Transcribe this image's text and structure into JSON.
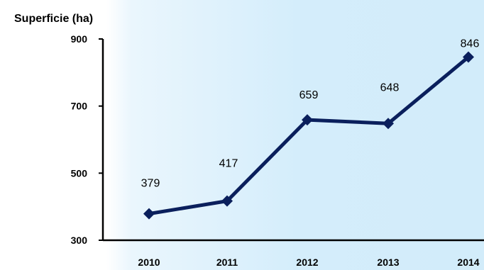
{
  "chart_data": {
    "type": "line",
    "title": "",
    "ylabel": "Superficie (ha)",
    "xlabel": "",
    "categories": [
      "2010",
      "2011",
      "2012",
      "2013",
      "2014"
    ],
    "series": [
      {
        "values": [
          379,
          417,
          659,
          648,
          846
        ],
        "labels": [
          "379",
          "417",
          "659",
          "648",
          "846"
        ]
      }
    ],
    "ylim": [
      300,
      900
    ],
    "yticks": [
      "300",
      "500",
      "700",
      "900"
    ],
    "grid": false,
    "legend": "none",
    "colors": {
      "line": "#0a1f5c",
      "axis": "#000000"
    }
  }
}
